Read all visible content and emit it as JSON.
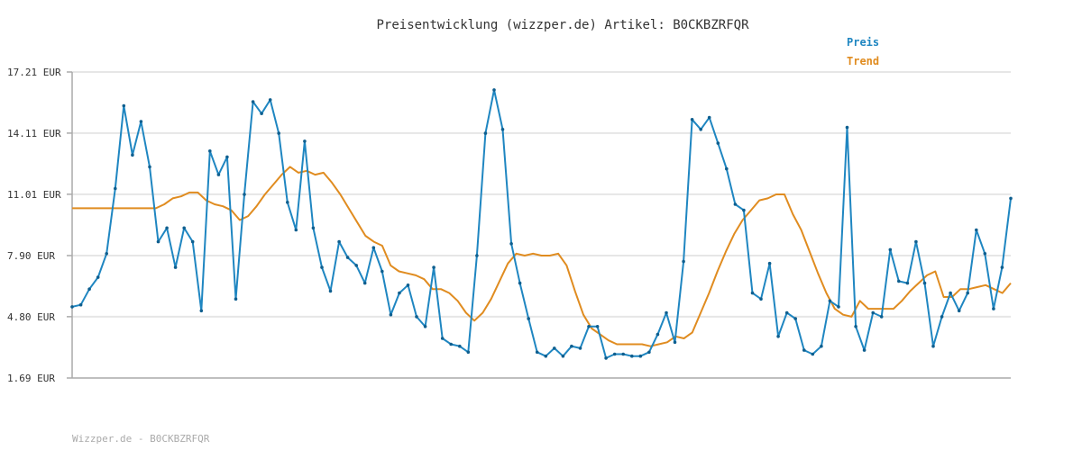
{
  "title": "Preisentwicklung (wizzper.de) Artikel: B0CKBZRFQR",
  "footer": "Wizzper.de - B0CKBZRFQR",
  "chart_data": {
    "type": "line",
    "title": "Preisentwicklung (wizzper.de) Artikel: B0CKBZRFQR",
    "ylim": [
      1.69,
      17.21
    ],
    "y_ticks": [
      "17.21 EUR",
      "14.11 EUR",
      "11.01 EUR",
      "7.90 EUR",
      "4.80 EUR",
      "1.69 EUR"
    ],
    "y_tick_values": [
      17.21,
      14.11,
      11.01,
      7.9,
      4.8,
      1.69
    ],
    "grid": true,
    "legend_position": "top-right",
    "series": [
      {
        "name": "Preis",
        "color": "#1f86c1",
        "values": [
          5.3,
          5.4,
          6.2,
          6.8,
          8.0,
          11.3,
          15.5,
          13.0,
          14.7,
          12.4,
          8.6,
          9.3,
          7.3,
          9.3,
          8.6,
          5.1,
          13.2,
          12.0,
          12.9,
          5.7,
          11.0,
          15.7,
          15.1,
          15.8,
          14.1,
          10.6,
          9.2,
          13.7,
          9.3,
          7.3,
          6.1,
          8.6,
          7.8,
          7.4,
          6.5,
          8.3,
          7.1,
          4.9,
          6.0,
          6.4,
          4.8,
          4.3,
          7.3,
          3.7,
          3.4,
          3.3,
          3.0,
          7.9,
          14.1,
          16.3,
          14.3,
          8.5,
          6.5,
          4.7,
          3.0,
          2.8,
          3.2,
          2.8,
          3.3,
          3.2,
          4.3,
          4.3,
          2.7,
          2.9,
          2.9,
          2.8,
          2.8,
          3.0,
          3.9,
          5.0,
          3.5,
          7.6,
          14.8,
          14.3,
          14.9,
          13.6,
          12.3,
          10.5,
          10.2,
          6.0,
          5.7,
          7.5,
          3.8,
          5.0,
          4.7,
          3.1,
          2.9,
          3.3,
          5.6,
          5.3,
          14.4,
          4.3,
          3.1,
          5.0,
          4.8,
          8.2,
          6.6,
          6.5,
          8.6,
          6.5,
          3.3,
          4.8,
          6.0,
          5.1,
          6.0,
          9.2,
          8.0,
          5.2,
          7.3,
          10.8
        ],
        "labels": []
      },
      {
        "name": "Trend",
        "color": "#e08c20",
        "values": [
          10.3,
          10.3,
          10.3,
          10.3,
          10.3,
          10.3,
          10.3,
          10.3,
          10.3,
          10.3,
          10.3,
          10.5,
          10.8,
          10.9,
          11.1,
          11.1,
          10.7,
          10.5,
          10.4,
          10.2,
          9.7,
          9.9,
          10.4,
          11.0,
          11.5,
          12.0,
          12.4,
          12.1,
          12.2,
          12.0,
          12.1,
          11.6,
          11.0,
          10.3,
          9.6,
          8.9,
          8.6,
          8.4,
          7.4,
          7.1,
          7.0,
          6.9,
          6.7,
          6.2,
          6.2,
          6.0,
          5.6,
          5.0,
          4.6,
          5.0,
          5.7,
          6.6,
          7.5,
          8.0,
          7.9,
          8.0,
          7.9,
          7.9,
          8.0,
          7.4,
          6.1,
          4.9,
          4.2,
          3.9,
          3.6,
          3.4,
          3.4,
          3.4,
          3.4,
          3.3,
          3.4,
          3.5,
          3.8,
          3.7,
          4.0,
          5.0,
          6.0,
          7.1,
          8.1,
          9.0,
          9.7,
          10.2,
          10.7,
          10.8,
          11.0,
          11.0,
          10.0,
          9.2,
          8.1,
          7.0,
          6.0,
          5.2,
          4.9,
          4.8,
          5.6,
          5.2,
          5.2,
          5.2,
          5.2,
          5.6,
          6.1,
          6.5,
          6.9,
          7.1,
          5.8,
          5.8,
          6.2,
          6.2,
          6.3,
          6.4,
          6.2,
          6.0,
          6.5
        ]
      }
    ]
  }
}
